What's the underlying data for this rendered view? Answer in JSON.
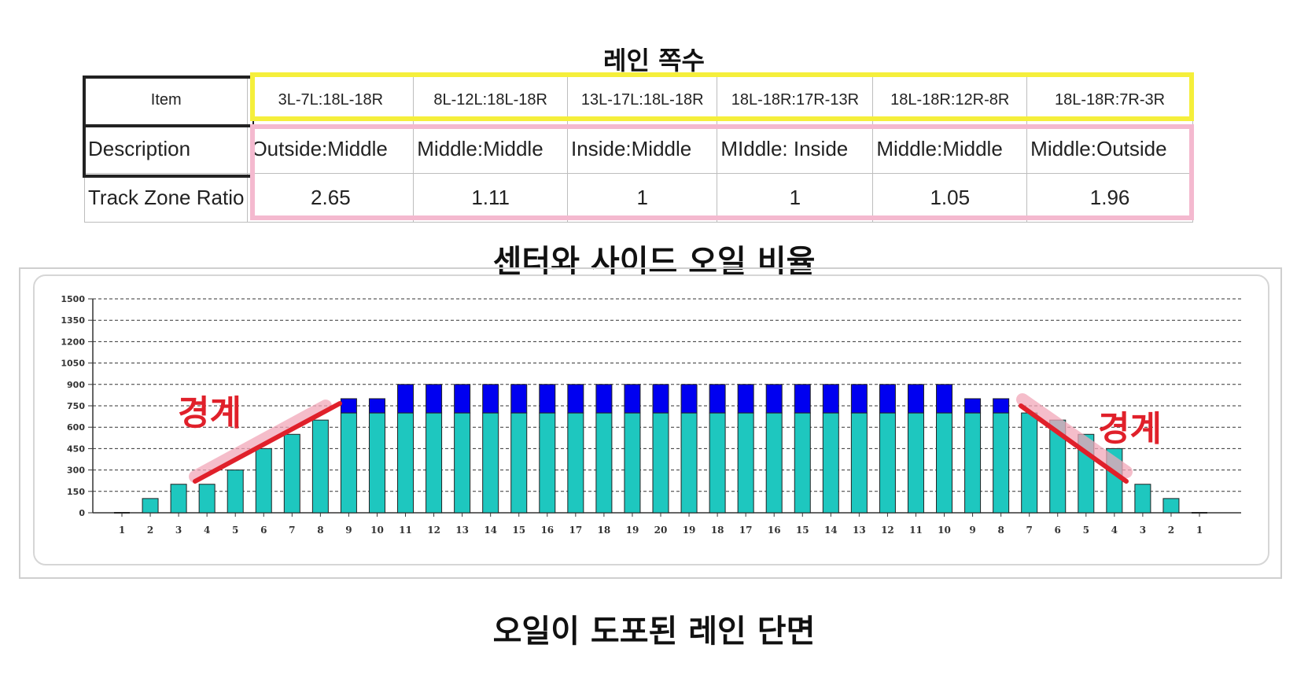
{
  "titles": {
    "lane_count": "레인 쪽수",
    "center_side_ratio": "센터와 사이드 오일 비율",
    "oiled_lane_profile": "오일이 도포된 레인 단면"
  },
  "table": {
    "row_labels": [
      "Item",
      "Description",
      "Track Zone Ratio"
    ],
    "columns": [
      {
        "item": "3L-7L:18L-18R",
        "description": "Outside:Middle",
        "ratio": "2.65"
      },
      {
        "item": "8L-12L:18L-18R",
        "description": "Middle:Middle",
        "ratio": "1.11"
      },
      {
        "item": "13L-17L:18L-18R",
        "description": "Inside:Middle",
        "ratio": "1"
      },
      {
        "item": "18L-18R:17R-13R",
        "description": "MIddle: Inside",
        "ratio": "1"
      },
      {
        "item": "18L-18R:12R-8R",
        "description": "Middle:Middle",
        "ratio": "1.05"
      },
      {
        "item": "18L-18R:7R-3R",
        "description": "Middle:Outside",
        "ratio": "1.96"
      }
    ]
  },
  "annotations": {
    "boundary_left": "경계",
    "boundary_right": "경계"
  },
  "colors": {
    "bar_base": "#1ec7bf",
    "bar_top": "#0000f0",
    "annotation_red": "#e0202a",
    "annotation_pink": "#f2a7b8",
    "highlight_yellow": "#f5ef3b",
    "highlight_pink": "#f4b9cf"
  },
  "chart_data": {
    "type": "bar",
    "stacked": true,
    "categories": [
      "1",
      "2",
      "3",
      "4",
      "5",
      "6",
      "7",
      "8",
      "9",
      "10",
      "11",
      "12",
      "13",
      "14",
      "15",
      "16",
      "17",
      "18",
      "19",
      "20",
      "19",
      "18",
      "17",
      "16",
      "15",
      "14",
      "13",
      "12",
      "11",
      "10",
      "9",
      "8",
      "7",
      "6",
      "5",
      "4",
      "3",
      "2",
      "1"
    ],
    "series": [
      {
        "values": [
          0,
          100,
          200,
          200,
          300,
          450,
          550,
          650,
          700,
          700,
          700,
          700,
          700,
          700,
          700,
          700,
          700,
          700,
          700,
          700,
          700,
          700,
          700,
          700,
          700,
          700,
          700,
          700,
          700,
          700,
          700,
          700,
          700,
          650,
          550,
          450,
          200,
          100,
          0
        ]
      },
      {
        "values": [
          0,
          0,
          0,
          0,
          0,
          0,
          0,
          0,
          100,
          100,
          200,
          200,
          200,
          200,
          200,
          200,
          200,
          200,
          200,
          200,
          200,
          200,
          200,
          200,
          200,
          200,
          200,
          200,
          200,
          200,
          100,
          100,
          0,
          0,
          0,
          0,
          0,
          0,
          0
        ]
      }
    ],
    "ylim": [
      0,
      1500
    ],
    "yticks": [
      0,
      150,
      300,
      450,
      600,
      750,
      900,
      1050,
      1200,
      1350,
      1500
    ],
    "grid": true
  }
}
